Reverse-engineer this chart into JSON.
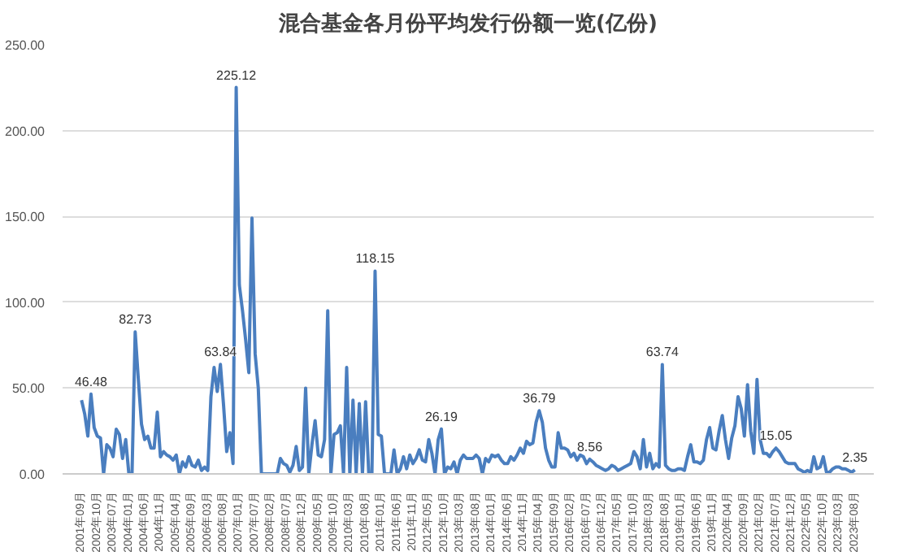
{
  "chart_data": {
    "type": "line",
    "title": "混合基金各月份平均发行份额一览(亿份)",
    "categories": [
      "2001年09月",
      null,
      null,
      null,
      null,
      "2002年10月",
      null,
      null,
      null,
      null,
      "2003年07月",
      null,
      null,
      null,
      null,
      "2004年01月",
      null,
      null,
      null,
      null,
      "2004年06月",
      null,
      null,
      null,
      null,
      "2004年11月",
      null,
      null,
      null,
      null,
      "2005年04月",
      null,
      null,
      null,
      null,
      "2005年09月",
      null,
      null,
      null,
      null,
      "2006年03月",
      null,
      null,
      null,
      null,
      "2006年08月",
      null,
      null,
      null,
      null,
      "2007年01月",
      null,
      null,
      null,
      null,
      "2007年07月",
      null,
      null,
      null,
      null,
      "2008年02月",
      null,
      null,
      null,
      null,
      "2008年07月",
      null,
      null,
      null,
      null,
      "2008年12月",
      null,
      null,
      null,
      null,
      "2009年05月",
      null,
      null,
      null,
      null,
      "2009年10月",
      null,
      null,
      null,
      null,
      "2010年03月",
      null,
      null,
      null,
      null,
      "2010年08月",
      null,
      null,
      null,
      null,
      "2011年01月",
      null,
      null,
      null,
      null,
      "2011年06月",
      null,
      null,
      null,
      null,
      "2011年11月",
      null,
      null,
      null,
      null,
      "2012年05月",
      null,
      null,
      null,
      null,
      "2012年10月",
      null,
      null,
      null,
      null,
      "2013年03月",
      null,
      null,
      null,
      null,
      "2013年08月",
      null,
      null,
      null,
      null,
      "2014年01月",
      null,
      null,
      null,
      null,
      "2014年06月",
      null,
      null,
      null,
      null,
      "2014年11月",
      null,
      null,
      null,
      null,
      "2015年04月",
      null,
      null,
      null,
      null,
      "2015年09月",
      null,
      null,
      null,
      null,
      "2016年02月",
      null,
      null,
      null,
      null,
      "2016年07月",
      null,
      null,
      null,
      null,
      "2016年12月",
      null,
      null,
      null,
      null,
      "2017年05月",
      null,
      null,
      null,
      null,
      "2017年10月",
      null,
      null,
      null,
      null,
      "2018年03月",
      null,
      null,
      null,
      null,
      "2018年08月",
      null,
      null,
      null,
      null,
      "2019年01月",
      null,
      null,
      null,
      null,
      "2019年06月",
      null,
      null,
      null,
      null,
      "2019年11月",
      null,
      null,
      null,
      null,
      "2020年04月",
      null,
      null,
      null,
      null,
      "2020年09月",
      null,
      null,
      null,
      null,
      "2021年02月",
      null,
      null,
      null,
      null,
      "2021年07月",
      null,
      null,
      null,
      null,
      "2021年12月",
      null,
      null,
      null,
      null,
      "2022年05月",
      null,
      null,
      null,
      null,
      "2022年10月",
      null,
      null,
      null,
      null,
      "2023年03月",
      null,
      null,
      null,
      null,
      "2023年08月"
    ],
    "series": [
      {
        "color": "#4a7ebf",
        "values": [
          43,
          35,
          22,
          46.48,
          27,
          22,
          21,
          0,
          17,
          15,
          10,
          26,
          23,
          9,
          20,
          0,
          0,
          82.73,
          55,
          29,
          20,
          22,
          15,
          15,
          36,
          10,
          13,
          11,
          10,
          8,
          11,
          0,
          7,
          4,
          10,
          5,
          4,
          8,
          2,
          4,
          2,
          45,
          62,
          48,
          63.84,
          40,
          13,
          24,
          6,
          225.12,
          110,
          95,
          78,
          59,
          149,
          70,
          50,
          0,
          0,
          0,
          0,
          0,
          0,
          9,
          6,
          5,
          1,
          5,
          16,
          2,
          4,
          50,
          0,
          17,
          31,
          11,
          10,
          20,
          95,
          0,
          23,
          24,
          28,
          0,
          62,
          0,
          43,
          0,
          41,
          0,
          42,
          0,
          0,
          118.15,
          23,
          22,
          0,
          0,
          0,
          14,
          0,
          3,
          10,
          3,
          11,
          6,
          9,
          14,
          8,
          7,
          20,
          12,
          0,
          20,
          26.19,
          0,
          4,
          3,
          7,
          0,
          8,
          11,
          9,
          9,
          9,
          11,
          9,
          0,
          9,
          7,
          11,
          10,
          11,
          8,
          6,
          6,
          10,
          8,
          11,
          15,
          12,
          19,
          17,
          18,
          30,
          36.79,
          30,
          15,
          8,
          4,
          4,
          24,
          15,
          15,
          14,
          10,
          12,
          8,
          11,
          10,
          6,
          8.56,
          7,
          5,
          4,
          3,
          2,
          3,
          5,
          4,
          2,
          3,
          4,
          5,
          6,
          13,
          10,
          3,
          20,
          4,
          12,
          3,
          6,
          4,
          63.74,
          5,
          3,
          2,
          2,
          3,
          3,
          2,
          10,
          17,
          7,
          7,
          6,
          8,
          20,
          27,
          15,
          14,
          25,
          34,
          20,
          9,
          21,
          28,
          45,
          38,
          22,
          52,
          25,
          12,
          55,
          20,
          12,
          12,
          10,
          13,
          15.05,
          13,
          10,
          7,
          6,
          6,
          6,
          3,
          2,
          1,
          2,
          1,
          10,
          3,
          4,
          10,
          1,
          1,
          3,
          4,
          4,
          3,
          3,
          2,
          1,
          2.35
        ],
        "value_labels": [
          null,
          null,
          null,
          "46.48",
          null,
          null,
          null,
          null,
          null,
          null,
          null,
          null,
          null,
          null,
          null,
          null,
          null,
          "82.73",
          null,
          null,
          null,
          null,
          null,
          null,
          null,
          null,
          null,
          null,
          null,
          null,
          null,
          null,
          null,
          null,
          null,
          null,
          null,
          null,
          null,
          null,
          null,
          null,
          null,
          null,
          "63.84",
          null,
          null,
          null,
          null,
          "225.12",
          null,
          null,
          null,
          null,
          null,
          null,
          null,
          null,
          null,
          null,
          null,
          null,
          null,
          null,
          null,
          null,
          null,
          null,
          null,
          null,
          null,
          null,
          null,
          null,
          null,
          null,
          null,
          null,
          null,
          null,
          null,
          null,
          null,
          null,
          null,
          null,
          null,
          null,
          null,
          null,
          null,
          null,
          null,
          "118.15",
          null,
          null,
          null,
          null,
          null,
          null,
          null,
          null,
          null,
          null,
          null,
          null,
          null,
          null,
          null,
          null,
          null,
          null,
          null,
          null,
          "26.19",
          null,
          null,
          null,
          null,
          null,
          null,
          null,
          null,
          null,
          null,
          null,
          null,
          null,
          null,
          null,
          null,
          null,
          null,
          null,
          null,
          null,
          null,
          null,
          null,
          null,
          null,
          null,
          null,
          null,
          null,
          "36.79",
          null,
          null,
          null,
          null,
          null,
          null,
          null,
          null,
          null,
          null,
          null,
          null,
          null,
          null,
          null,
          "8.56",
          null,
          null,
          null,
          null,
          null,
          null,
          null,
          null,
          null,
          null,
          null,
          null,
          null,
          null,
          null,
          null,
          null,
          null,
          null,
          null,
          null,
          null,
          "63.74",
          null,
          null,
          null,
          null,
          null,
          null,
          null,
          null,
          null,
          null,
          null,
          null,
          null,
          null,
          null,
          null,
          null,
          null,
          null,
          null,
          null,
          null,
          null,
          null,
          null,
          null,
          null,
          null,
          null,
          null,
          null,
          null,
          null,
          null,
          null,
          "15.05",
          null,
          null,
          null,
          null,
          null,
          null,
          null,
          null,
          null,
          null,
          null,
          null,
          null,
          null,
          null,
          null,
          null,
          null,
          null,
          null,
          null,
          null,
          null,
          null,
          "2.35"
        ]
      }
    ],
    "ylim": [
      0,
      250
    ],
    "yticks": [
      {
        "value": 0,
        "label": "0.00"
      },
      {
        "value": 50,
        "label": "50.00"
      },
      {
        "value": 100,
        "label": "100.00"
      },
      {
        "value": 150,
        "label": "150.00"
      },
      {
        "value": 200,
        "label": "200.00"
      },
      {
        "value": 250,
        "label": "250.00"
      }
    ],
    "grid": "y"
  }
}
